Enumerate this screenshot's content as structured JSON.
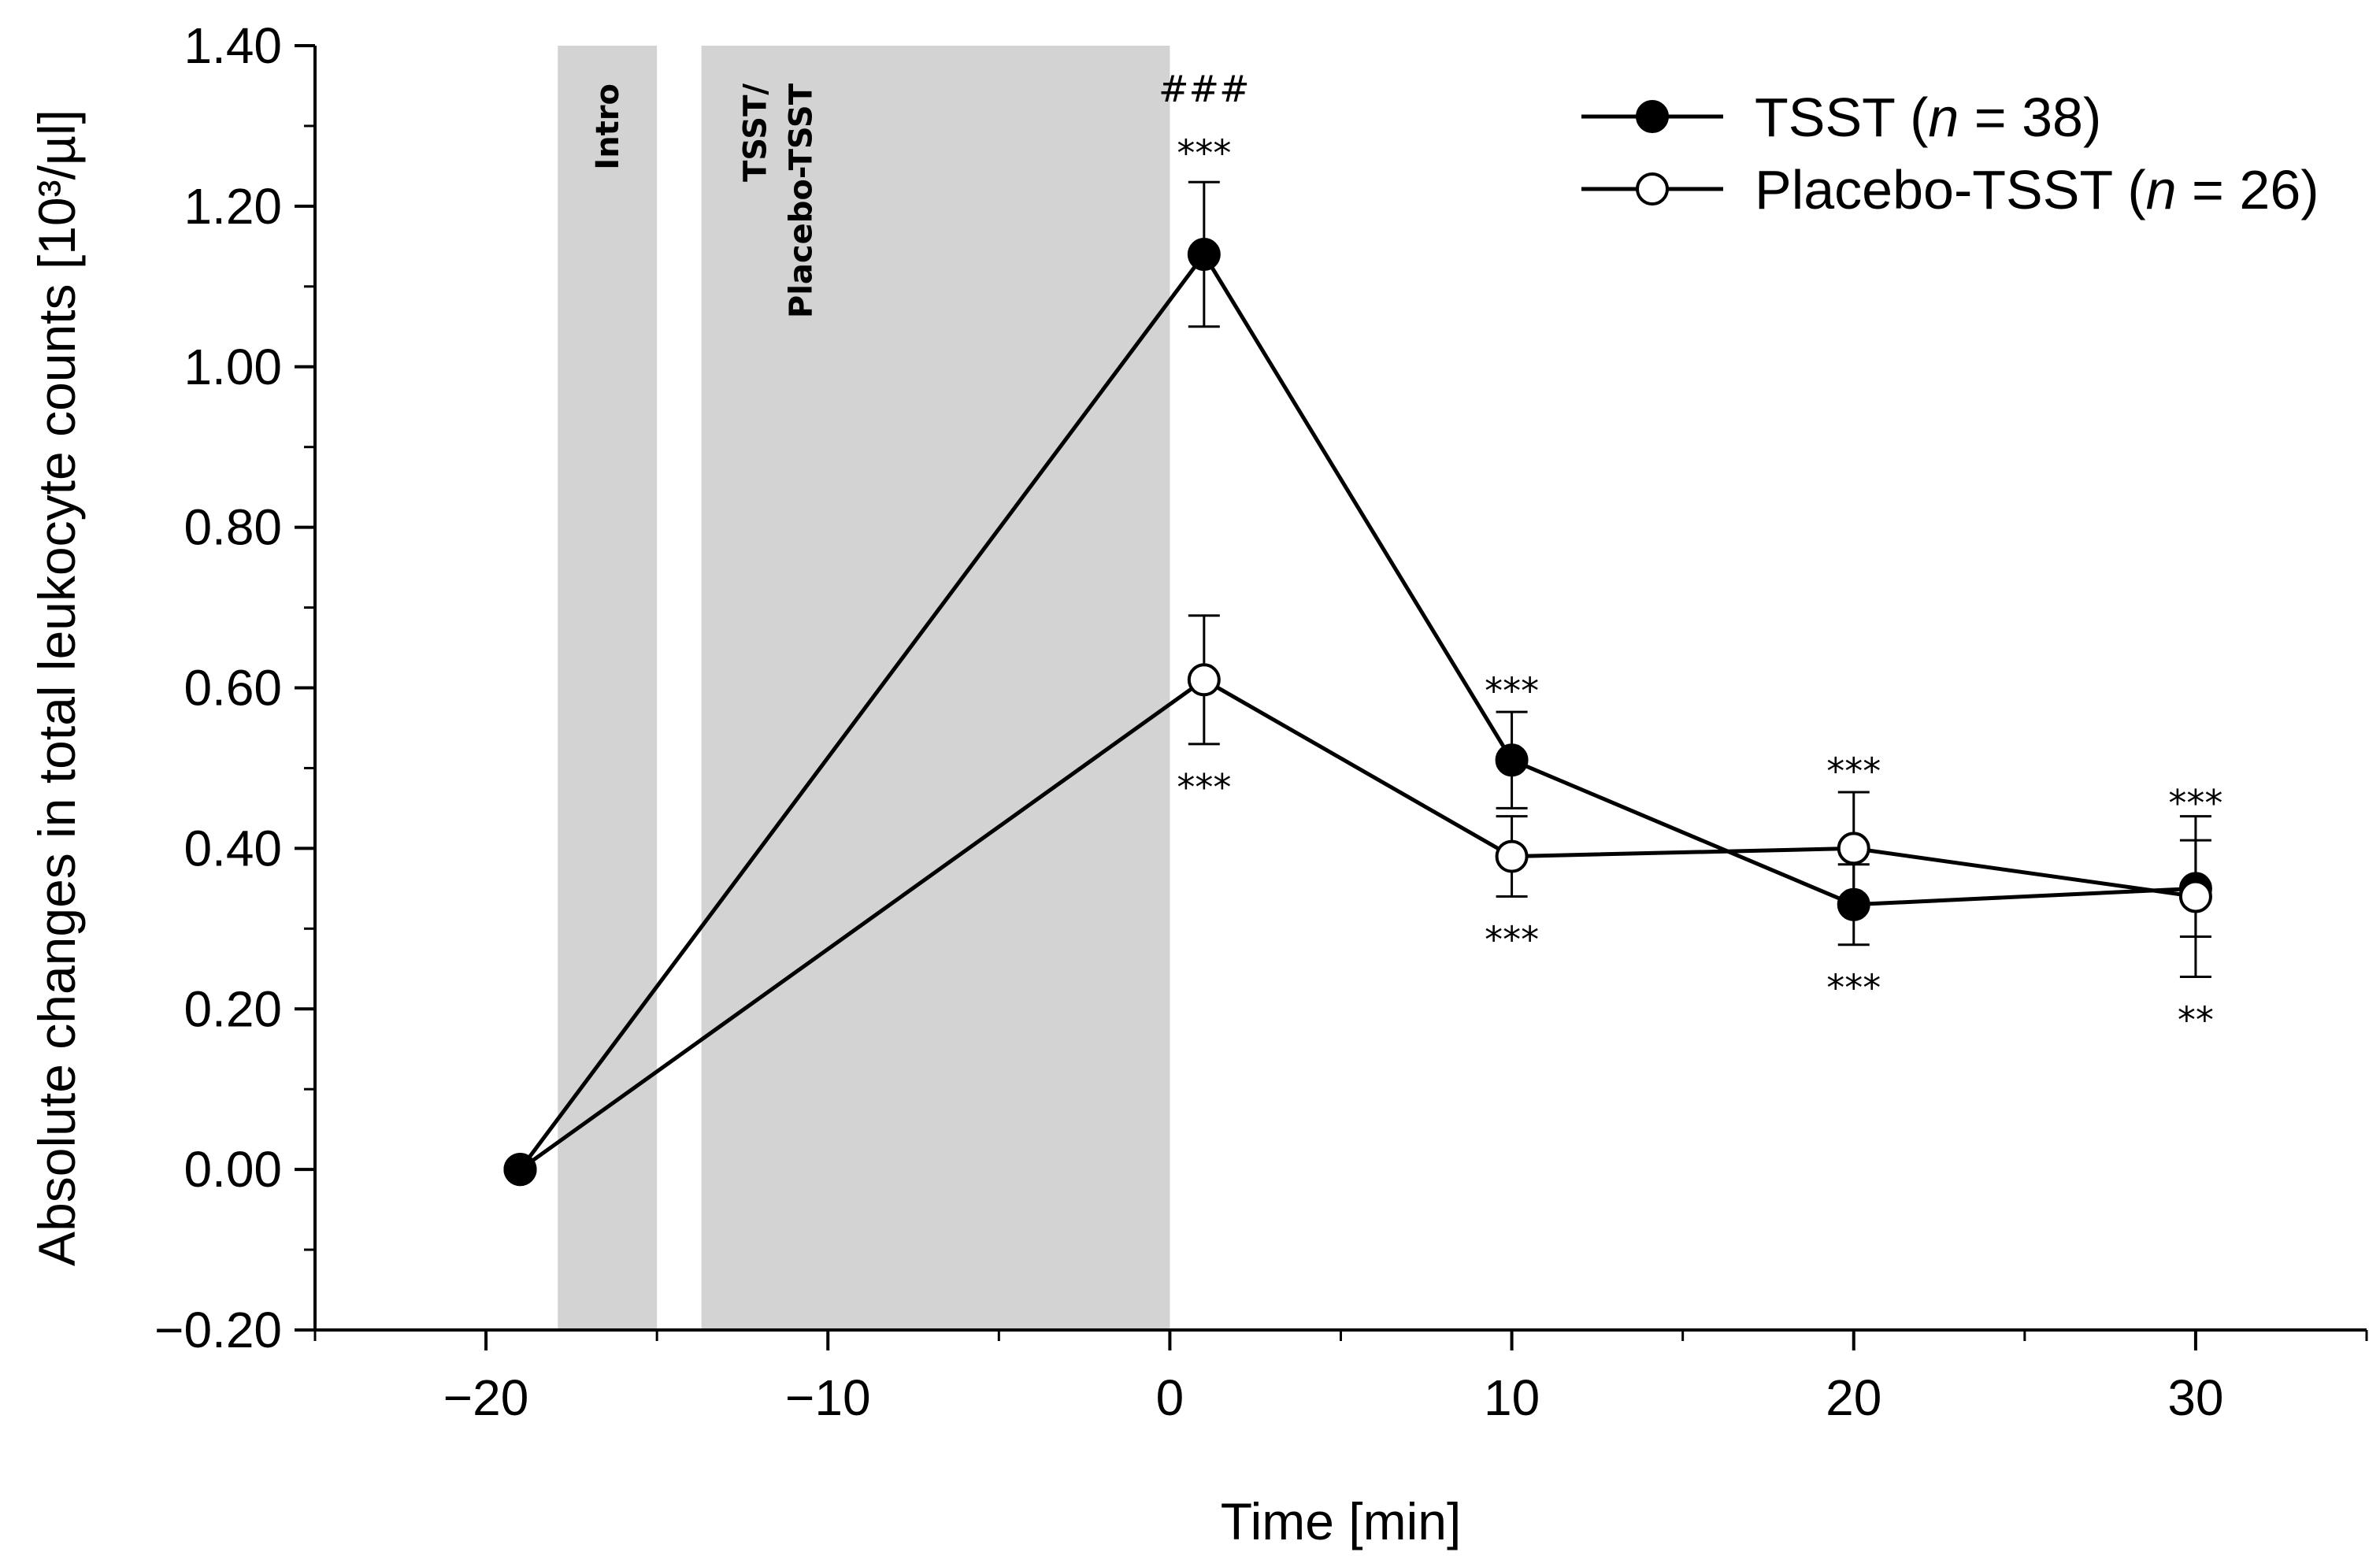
{
  "chart_data": {
    "type": "line",
    "title": "",
    "xlabel": "Time [min]",
    "ylabel": "Absolute changes in total leukocyte counts [10³/µl]",
    "xlim": [
      -25,
      35
    ],
    "ylim": [
      -0.2,
      1.4
    ],
    "x_ticks": [
      -20,
      -10,
      0,
      10,
      20,
      30
    ],
    "x_tick_labels": [
      "−20",
      "−10",
      "0",
      "10",
      "20",
      "30"
    ],
    "y_ticks": [
      -0.2,
      0,
      0.2,
      0.4,
      0.6,
      0.8,
      1.0,
      1.2,
      1.4
    ],
    "y_tick_labels": [
      "−0.20",
      "0.00",
      "0.20",
      "0.40",
      "0.60",
      "0.80",
      "1.00",
      "1.20",
      "1.40"
    ],
    "grid": false,
    "legend_position": "top-right",
    "shaded_bands": [
      {
        "label": "Intro",
        "x0": -17.9,
        "x1": -15
      },
      {
        "label_line1": "TSST/",
        "label_line2": "Placebo-TSST",
        "x0": -13.7,
        "x1": 0
      }
    ],
    "series": [
      {
        "name": "TSST",
        "n_label": "n",
        "n_value": "= 38)",
        "marker": "filled",
        "color": "#000000",
        "x": [
          -19,
          1,
          10,
          20,
          30
        ],
        "y": [
          0.0,
          1.14,
          0.51,
          0.33,
          0.35
        ],
        "err": [
          0,
          0.09,
          0.06,
          0.05,
          0.06
        ]
      },
      {
        "name": "Placebo-TSST",
        "n_label": "n",
        "n_value": "= 26)",
        "marker": "open",
        "color": "#ffffff",
        "x": [
          -19,
          1,
          10,
          20,
          30
        ],
        "y": [
          0.0,
          0.61,
          0.39,
          0.4,
          0.34
        ],
        "err": [
          0,
          0.08,
          0.05,
          0.07,
          0.1
        ]
      }
    ],
    "annotations": [
      {
        "text": "###",
        "x": 1,
        "y": 1.35
      },
      {
        "text": "***",
        "x": 1,
        "y": 1.27
      },
      {
        "text": "***",
        "x": 1,
        "y": 0.48
      },
      {
        "text": "***",
        "x": 10,
        "y": 0.6
      },
      {
        "text": "***",
        "x": 10,
        "y": 0.29
      },
      {
        "text": "***",
        "x": 20,
        "y": 0.5
      },
      {
        "text": "***",
        "x": 20,
        "y": 0.23
      },
      {
        "text": "***",
        "x": 30,
        "y": 0.46
      },
      {
        "text": "**",
        "x": 30,
        "y": 0.19
      }
    ]
  }
}
